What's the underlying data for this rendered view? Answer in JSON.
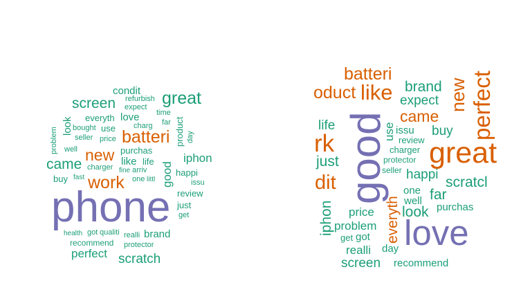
{
  "colors": {
    "purple": "#7570b3",
    "orange": "#d95f02",
    "green": "#1b9e77"
  },
  "left_cloud": {
    "words": {
      "phone": "phone",
      "batteri": "batteri",
      "new": "new",
      "work": "work",
      "great": "great",
      "screen": "screen",
      "came": "came",
      "condit": "condit",
      "refurbish": "refurbish",
      "expect": "expect",
      "everyth": "everyth",
      "love": "love",
      "time": "time",
      "charg": "charg",
      "far": "far",
      "bought": "bought",
      "use": "use",
      "seller": "seller",
      "price": "price",
      "purchas": "purchas",
      "product": "product",
      "day": "day",
      "well": "well",
      "problem": "problem",
      "look": "look",
      "like": "like",
      "life": "life",
      "iphon": "iphon",
      "charger": "charger",
      "fine": "fine",
      "arriv": "arriv",
      "good": "good",
      "happi": "happi",
      "buy": "buy",
      "fast": "fast",
      "one": "one",
      "littl": "littl",
      "issu": "issu",
      "review": "review",
      "just": "just",
      "get": "get",
      "health": "health",
      "got": "got",
      "qualiti": "qualiti",
      "realli": "realli",
      "brand": "brand",
      "recommend": "recommend",
      "protector": "protector",
      "perfect": "perfect",
      "scratch": "scratch"
    }
  },
  "right_cloud": {
    "words": {
      "batteri": "batteri",
      "product": "oduct",
      "like": "like",
      "brand": "brand",
      "new": "new",
      "perfect": "perfect",
      "expect": "expect",
      "came": "came",
      "life": "life",
      "good": "good",
      "use": "use",
      "issu": "issu",
      "buy": "buy",
      "great": "great",
      "work": "rk",
      "review": "review",
      "charger": "charger",
      "just": "just",
      "protector": "protector",
      "seller": "seller",
      "happi": "happi",
      "credit": "dit",
      "scratch": "scratcl",
      "everyth": "everyth",
      "one": "one",
      "far": "far",
      "iphon": "iphon",
      "well": "well",
      "look": "look",
      "purchas": "purchas",
      "price": "price",
      "problem": "problem",
      "love": "love",
      "get": "get",
      "got": "got",
      "realli": "realli",
      "day": "day",
      "screen": "screen",
      "recommend": "recommend"
    }
  }
}
